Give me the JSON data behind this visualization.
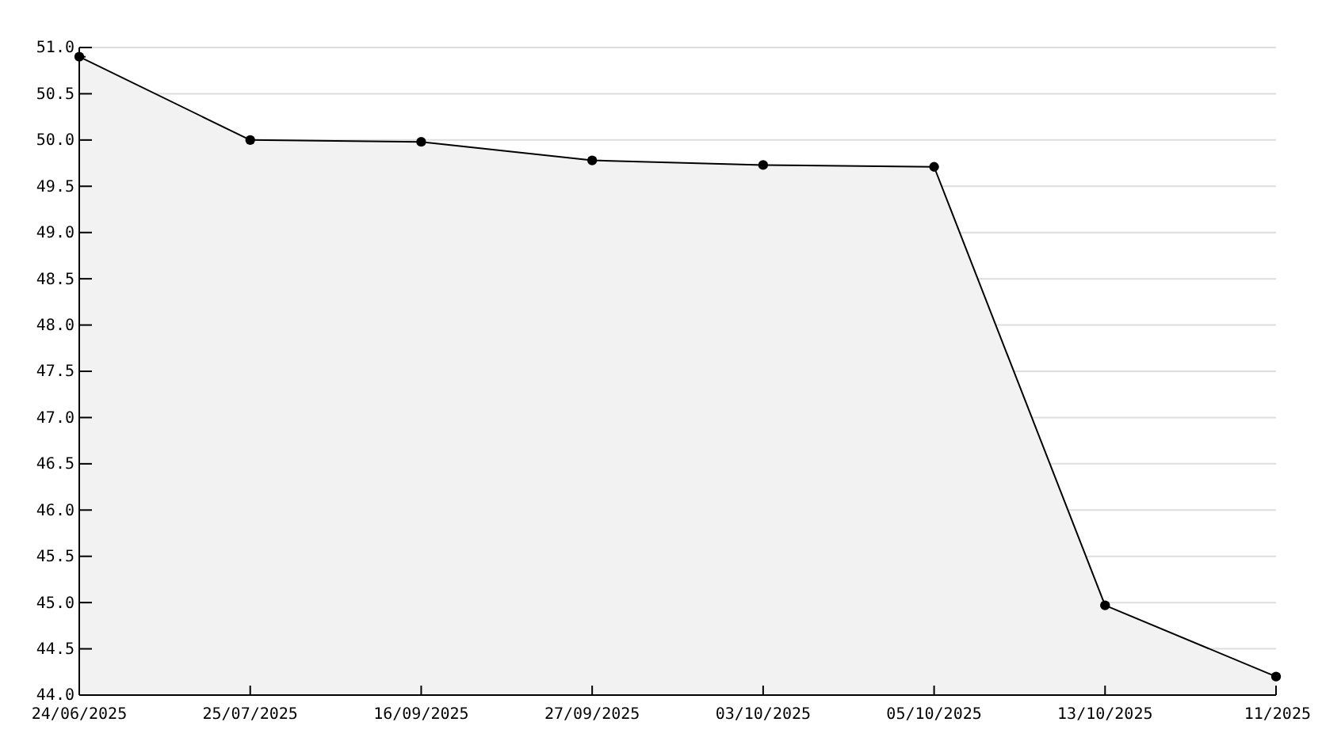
{
  "chart_data": {
    "type": "area",
    "categories": [
      "24/06/2025",
      "25/07/2025",
      "16/09/2025",
      "27/09/2025",
      "03/10/2025",
      "05/10/2025",
      "13/10/2025",
      "11/2025"
    ],
    "series": [
      {
        "color": "#000000",
        "values": [
          50.9,
          50.0,
          49.98,
          49.78,
          49.73,
          49.71,
          44.97,
          44.2
        ]
      }
    ],
    "ylim": [
      44,
      51
    ],
    "yticks": [
      {
        "value": 44,
        "label": "44.0"
      },
      {
        "value": 44.5,
        "label": "44.5"
      },
      {
        "value": 45,
        "label": "45.0"
      },
      {
        "value": 45.5,
        "label": "45.5"
      },
      {
        "value": 46,
        "label": "46.0"
      },
      {
        "value": 46.5,
        "label": "46.5"
      },
      {
        "value": 47,
        "label": "47.0"
      },
      {
        "value": 47.5,
        "label": "47.5"
      },
      {
        "value": 48,
        "label": "48.0"
      },
      {
        "value": 48.5,
        "label": "48.5"
      },
      {
        "value": 49,
        "label": "49.0"
      },
      {
        "value": 49.5,
        "label": "49.5"
      },
      {
        "value": 50,
        "label": "50.0"
      },
      {
        "value": 50.5,
        "label": "50.5"
      },
      {
        "value": 51,
        "label": "51.0"
      }
    ],
    "grid": "y",
    "marker": "circle"
  }
}
